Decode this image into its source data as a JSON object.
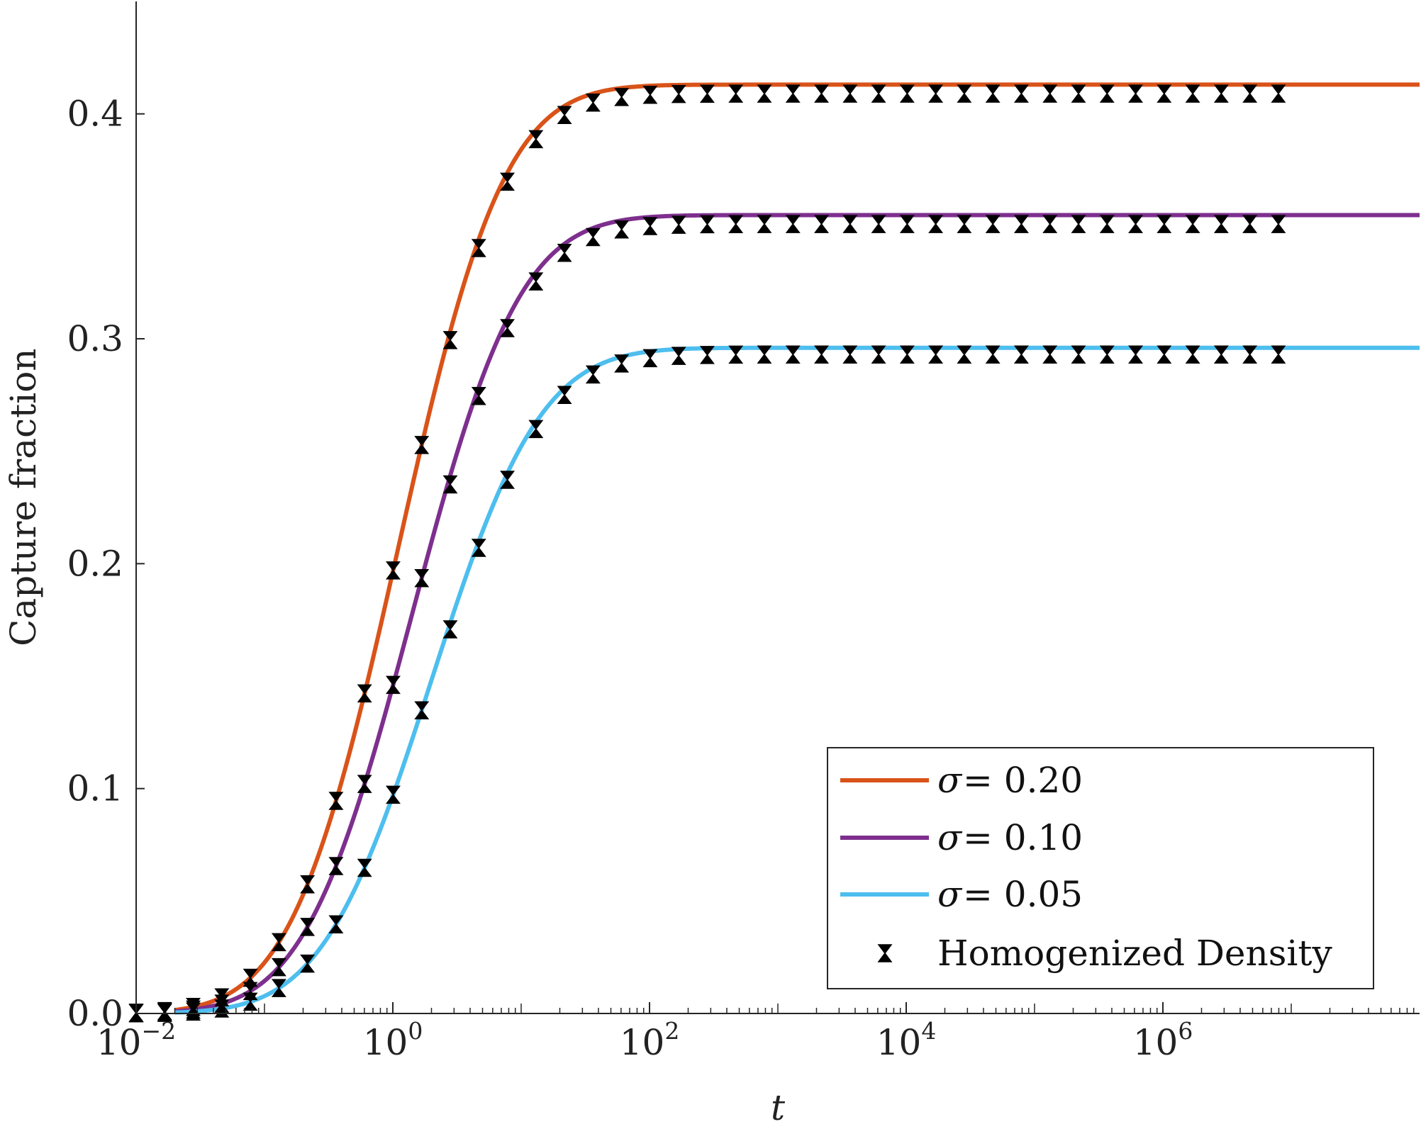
{
  "chart_data": {
    "type": "line",
    "title": "",
    "xlabel": "t",
    "ylabel": "Capture fraction",
    "xscale": "log",
    "xlim": [
      0.01,
      100000000
    ],
    "ylim": [
      0,
      0.45
    ],
    "grid": false,
    "legend_position": "bottom-right",
    "x_ticks": [
      {
        "value": 0.01,
        "base": "10",
        "exp": "−2"
      },
      {
        "value": 1,
        "base": "10",
        "exp": "0"
      },
      {
        "value": 100,
        "base": "10",
        "exp": "2"
      },
      {
        "value": 10000,
        "base": "10",
        "exp": "4"
      },
      {
        "value": 1000000,
        "base": "10",
        "exp": "6"
      }
    ],
    "y_ticks": [
      {
        "value": 0.0,
        "label": "0.0"
      },
      {
        "value": 0.1,
        "label": "0.1"
      },
      {
        "value": 0.2,
        "label": "0.2"
      },
      {
        "value": 0.3,
        "label": "0.3"
      },
      {
        "value": 0.4,
        "label": "0.4"
      }
    ],
    "series": [
      {
        "name": "σ = 0.20",
        "sigma_symbol": "σ",
        "value_text": "= 0.20",
        "color": "#D95319",
        "plateau": 0.413,
        "midpoint_log10_t": 0.04,
        "width_decades": 0.65,
        "marker_offset": -0.004
      },
      {
        "name": "σ = 0.10",
        "sigma_symbol": "σ",
        "value_text": "= 0.10",
        "color": "#7E2F8E",
        "plateau": 0.355,
        "midpoint_log10_t": 0.15,
        "width_decades": 0.66,
        "marker_offset": -0.004
      },
      {
        "name": "σ = 0.05",
        "sigma_symbol": "σ",
        "value_text": "= 0.05",
        "color": "#4DBEEE",
        "plateau": 0.296,
        "midpoint_log10_t": 0.3,
        "width_decades": 0.67,
        "marker_offset": -0.003
      }
    ],
    "markers": {
      "name": "Homogenized Density",
      "symbol": "bowtie",
      "color": "#000000",
      "x_log10_start": -2.0,
      "x_log10_end": 6.9,
      "x_log10_step": 0.2225
    }
  }
}
